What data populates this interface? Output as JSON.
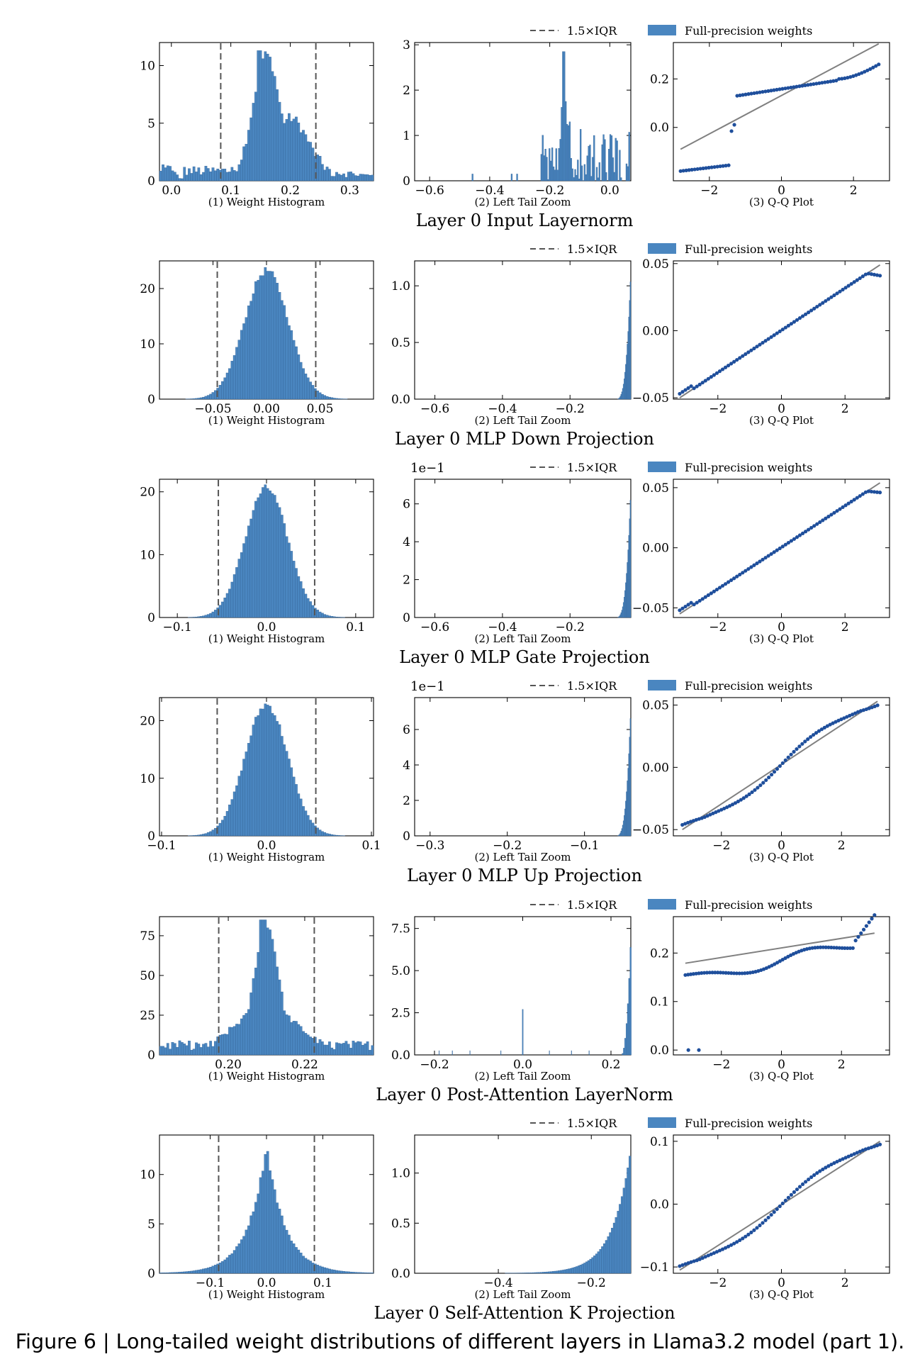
{
  "figure": {
    "caption": "Figure 6 | Long-tailed weight distributions of different layers in Llama3.2 model (part 1).",
    "legend": {
      "iqr_label": "1.5×IQR",
      "weights_label": "Full-precision weights"
    },
    "colors": {
      "bars": "#4a86c0",
      "bar_edge": "#2f5f93",
      "qq_points": "#1f4f9c",
      "qq_line": "#808080",
      "iqr_line": "#555555"
    },
    "panel_labels": [
      "(1) Weight Histogram",
      "(2) Left Tail Zoom",
      "(3) Q-Q Plot"
    ]
  },
  "chart_data": [
    {
      "title": "Layer 0 Input Layernorm",
      "hist": {
        "type": "bar",
        "shape": "bimodal-skewed",
        "xlim": [
          -0.02,
          0.34
        ],
        "ylim": [
          0,
          12
        ],
        "xticks": [
          "0.0",
          "0.1",
          "0.2",
          "0.3"
        ],
        "xtick_values": [
          0,
          0.1,
          0.2,
          0.3
        ],
        "yticks": [
          "0",
          "5",
          "10"
        ],
        "ytick_values": [
          0,
          5,
          10
        ],
        "iqr_lines": [
          0.083,
          0.243
        ],
        "peak": 11.3
      },
      "tail": {
        "type": "bar",
        "shape": "sparse-left",
        "xlim": [
          -0.65,
          0.07
        ],
        "ylim": [
          0,
          3.05
        ],
        "xticks": [
          "−0.6",
          "−0.4",
          "−0.2",
          "0.0"
        ],
        "xtick_values": [
          -0.6,
          -0.4,
          -0.2,
          0
        ],
        "yticks": [
          "0",
          "1",
          "2",
          "3"
        ],
        "ytick_values": [
          0,
          1,
          2,
          3
        ],
        "exp_label": ""
      },
      "qq": {
        "type": "scatter",
        "shape": "jump",
        "xlim": [
          -3.0,
          3.0
        ],
        "ylim": [
          -0.22,
          0.35
        ],
        "xticks": [
          "−2",
          "0",
          "2"
        ],
        "xtick_values": [
          -2,
          0,
          2
        ],
        "yticks": [
          "0.0",
          "0.2"
        ],
        "ytick_values": [
          0,
          0.2
        ],
        "ref_line": [
          [
            -2.8,
            -0.09
          ],
          [
            2.7,
            0.345
          ]
        ]
      }
    },
    {
      "title": "Layer 0 MLP Down Projection",
      "hist": {
        "type": "bar",
        "shape": "gaussian",
        "xlim": [
          -0.1,
          0.1
        ],
        "ylim": [
          0,
          25
        ],
        "xticks": [
          "−0.05",
          "0.00",
          "0.05"
        ],
        "xtick_values": [
          -0.05,
          0,
          0.05
        ],
        "yticks": [
          "0",
          "10",
          "20"
        ],
        "ytick_values": [
          0,
          10,
          20
        ],
        "iqr_lines": [
          -0.046,
          0.046
        ],
        "peak": 23.5,
        "sigma": 0.0205
      },
      "tail": {
        "type": "bar",
        "shape": "right-edge",
        "xlim": [
          -0.66,
          -0.02
        ],
        "ylim": [
          0,
          1.22
        ],
        "xticks": [
          "−0.6",
          "−0.4",
          "−0.2"
        ],
        "xtick_values": [
          -0.6,
          -0.4,
          -0.2
        ],
        "yticks": [
          "0.0",
          "0.5",
          "1.0"
        ],
        "ytick_values": [
          0,
          0.5,
          1.0
        ],
        "exp_label": ""
      },
      "qq": {
        "type": "scatter",
        "shape": "linear",
        "xlim": [
          -3.4,
          3.4
        ],
        "ylim": [
          -0.051,
          0.052
        ],
        "xticks": [
          "−2",
          "0",
          "2"
        ],
        "xtick_values": [
          -2,
          0,
          2
        ],
        "yticks": [
          "−0.05",
          "0.00",
          "0.05"
        ],
        "ytick_values": [
          -0.05,
          0,
          0.05
        ],
        "ref_line": [
          [
            -3.2,
            -0.05
          ],
          [
            3.1,
            0.049
          ]
        ]
      }
    },
    {
      "title": "Layer 0 MLP Gate Projection",
      "hist": {
        "type": "bar",
        "shape": "gaussian",
        "xlim": [
          -0.12,
          0.12
        ],
        "ylim": [
          0,
          22
        ],
        "xticks": [
          "−0.1",
          "0.0",
          "0.1"
        ],
        "xtick_values": [
          -0.1,
          0,
          0.1
        ],
        "yticks": [
          "0",
          "10",
          "20"
        ],
        "ytick_values": [
          0,
          10,
          20
        ],
        "iqr_lines": [
          -0.054,
          0.054
        ],
        "peak": 20.8,
        "sigma": 0.024
      },
      "tail": {
        "type": "bar",
        "shape": "right-edge",
        "xlim": [
          -0.66,
          -0.02
        ],
        "ylim": [
          0,
          7.3
        ],
        "xticks": [
          "−0.6",
          "−0.4",
          "−0.2"
        ],
        "xtick_values": [
          -0.6,
          -0.4,
          -0.2
        ],
        "yticks": [
          "0",
          "2",
          "4",
          "6"
        ],
        "ytick_values": [
          0,
          2,
          4,
          6
        ],
        "exp_label": "1e−1"
      },
      "qq": {
        "type": "scatter",
        "shape": "linear",
        "xlim": [
          -3.4,
          3.4
        ],
        "ylim": [
          -0.058,
          0.057
        ],
        "xticks": [
          "−2",
          "0",
          "2"
        ],
        "xtick_values": [
          -2,
          0,
          2
        ],
        "yticks": [
          "−0.05",
          "0.00",
          "0.05"
        ],
        "ytick_values": [
          -0.05,
          0,
          0.05
        ],
        "ref_line": [
          [
            -3.2,
            -0.055
          ],
          [
            3.1,
            0.054
          ]
        ]
      }
    },
    {
      "title": "Layer 0 MLP Up Projection",
      "hist": {
        "type": "bar",
        "shape": "gaussian",
        "xlim": [
          -0.102,
          0.102
        ],
        "ylim": [
          0,
          24
        ],
        "xticks": [
          "−0.1",
          "0.0",
          "0.1"
        ],
        "xtick_values": [
          -0.1,
          0,
          0.1
        ],
        "yticks": [
          "0",
          "10",
          "20"
        ],
        "ytick_values": [
          0,
          10,
          20
        ],
        "iqr_lines": [
          -0.047,
          0.047
        ],
        "peak": 23.0,
        "sigma": 0.0205
      },
      "tail": {
        "type": "bar",
        "shape": "right-edge",
        "xlim": [
          -0.32,
          -0.04
        ],
        "ylim": [
          0,
          7.8
        ],
        "xticks": [
          "−0.3",
          "−0.2",
          "−0.1"
        ],
        "xtick_values": [
          -0.3,
          -0.2,
          -0.1
        ],
        "yticks": [
          "0",
          "2",
          "4",
          "6"
        ],
        "ytick_values": [
          0,
          2,
          4,
          6
        ],
        "exp_label": "1e−1"
      },
      "qq": {
        "type": "scatter",
        "shape": "s-curve",
        "xlim": [
          -3.6,
          3.6
        ],
        "ylim": [
          -0.055,
          0.056
        ],
        "xticks": [
          "−2",
          "0",
          "2"
        ],
        "xtick_values": [
          -2,
          0,
          2
        ],
        "yticks": [
          "−0.05",
          "0.00",
          "0.05"
        ],
        "ytick_values": [
          -0.05,
          0,
          0.05
        ],
        "ref_line": [
          [
            -3.3,
            -0.05
          ],
          [
            3.2,
            0.053
          ]
        ]
      }
    },
    {
      "title": "Layer 0 Post-Attention LayerNorm",
      "hist": {
        "type": "bar",
        "shape": "peaked",
        "xlim": [
          0.182,
          0.238
        ],
        "ylim": [
          0,
          87
        ],
        "xticks": [
          "0.20",
          "0.22"
        ],
        "xtick_values": [
          0.2,
          0.22
        ],
        "yticks": [
          "0",
          "25",
          "50",
          "75"
        ],
        "ytick_values": [
          0,
          25,
          50,
          75
        ],
        "iqr_lines": [
          0.1975,
          0.2225
        ],
        "peak": 85
      },
      "tail": {
        "type": "bar",
        "shape": "spike-and-edge",
        "xlim": [
          -0.245,
          0.245
        ],
        "ylim": [
          0,
          8.2
        ],
        "xticks": [
          "−0.2",
          "0.0",
          "0.2"
        ],
        "xtick_values": [
          -0.2,
          0,
          0.2
        ],
        "yticks": [
          "0.0",
          "2.5",
          "5.0",
          "7.5"
        ],
        "ytick_values": [
          0,
          2.5,
          5,
          7.5
        ],
        "exp_label": ""
      },
      "qq": {
        "type": "scatter",
        "shape": "flat-outliers",
        "xlim": [
          -3.6,
          3.6
        ],
        "ylim": [
          -0.01,
          0.275
        ],
        "xticks": [
          "−2",
          "0",
          "2"
        ],
        "xtick_values": [
          -2,
          0,
          2
        ],
        "yticks": [
          "0.0",
          "0.1",
          "0.2"
        ],
        "ytick_values": [
          0,
          0.1,
          0.2
        ],
        "ref_line": [
          [
            -3.2,
            0.179
          ],
          [
            3.1,
            0.241
          ]
        ]
      }
    },
    {
      "title": "Layer 0 Self-Attention K Projection",
      "hist": {
        "type": "bar",
        "shape": "laplace",
        "xlim": [
          -0.19,
          0.19
        ],
        "ylim": [
          0,
          14
        ],
        "xticks": [
          "−0.1",
          "0.0",
          "0.1"
        ],
        "xtick_values": [
          -0.1,
          0,
          0.1
        ],
        "yticks": [
          "0",
          "5",
          "10"
        ],
        "ytick_values": [
          0,
          5,
          10
        ],
        "iqr_lines": [
          -0.085,
          0.085
        ],
        "peak": 13.2,
        "scale": 0.033
      },
      "tail": {
        "type": "bar",
        "shape": "right-rise",
        "xlim": [
          -0.58,
          -0.115
        ],
        "ylim": [
          0,
          1.38
        ],
        "xticks": [
          "−0.4",
          "−0.2"
        ],
        "xtick_values": [
          -0.4,
          -0.2
        ],
        "yticks": [
          "0.0",
          "0.5",
          "1.0"
        ],
        "ytick_values": [
          0,
          0.5,
          1.0
        ],
        "exp_label": ""
      },
      "qq": {
        "type": "scatter",
        "shape": "s-curve",
        "xlim": [
          -3.4,
          3.4
        ],
        "ylim": [
          -0.11,
          0.11
        ],
        "xticks": [
          "−2",
          "0",
          "2"
        ],
        "xtick_values": [
          -2,
          0,
          2
        ],
        "yticks": [
          "−0.1",
          "0.0",
          "0.1"
        ],
        "ytick_values": [
          -0.1,
          0,
          0.1
        ],
        "ref_line": [
          [
            -3.2,
            -0.105
          ],
          [
            3.1,
            0.1
          ]
        ]
      }
    }
  ]
}
